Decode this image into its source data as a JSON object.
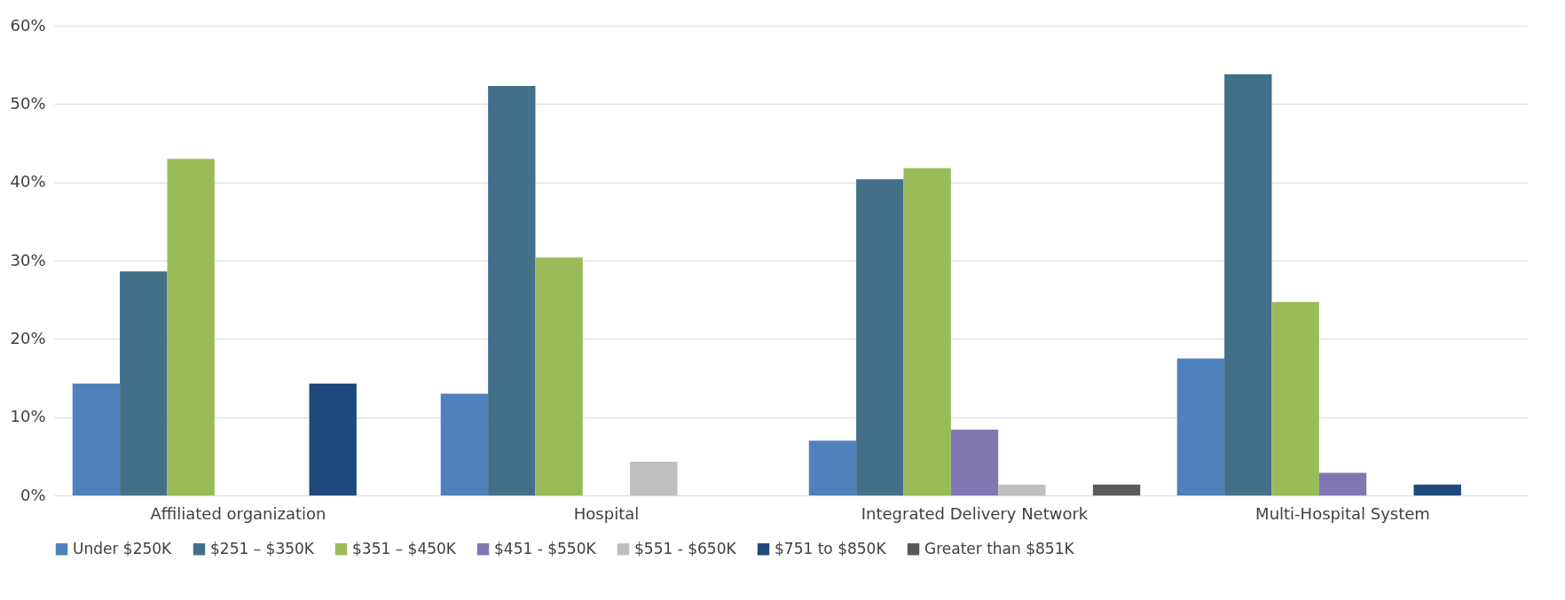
{
  "chart_data": {
    "type": "bar",
    "categories": [
      "Affiliated organization",
      "Hospital",
      "Integrated Delivery Network",
      "Multi-Hospital System"
    ],
    "series": [
      {
        "name": "Under $250K",
        "color": "#4f81bd",
        "values": [
          14.3,
          13.0,
          7.0,
          17.5
        ]
      },
      {
        "name": "$251 – $350K",
        "color": "#426f89",
        "values": [
          28.6,
          52.3,
          40.4,
          53.8
        ]
      },
      {
        "name": "$351 – $450K",
        "color": "#9bbb59",
        "values": [
          43.0,
          30.4,
          41.8,
          24.7
        ]
      },
      {
        "name": "$451 - $550K",
        "color": "#8077b2",
        "values": [
          0,
          0,
          8.4,
          2.9
        ]
      },
      {
        "name": "$551 - $650K",
        "color": "#bfbfbf",
        "values": [
          0,
          4.3,
          1.4,
          0
        ]
      },
      {
        "name": "$751 to $850K",
        "color": "#1f497d",
        "values": [
          14.3,
          0,
          0,
          1.4
        ]
      },
      {
        "name": "Greater than $851K",
        "color": "#595959",
        "values": [
          0,
          0,
          1.4,
          0
        ]
      }
    ],
    "ylim": [
      0,
      60
    ],
    "yticks": [
      {
        "value": 0,
        "label": "0%"
      },
      {
        "value": 10,
        "label": "10%"
      },
      {
        "value": 20,
        "label": "20%"
      },
      {
        "value": 30,
        "label": "30%"
      },
      {
        "value": 40,
        "label": "40%"
      },
      {
        "value": 50,
        "label": "50%"
      },
      {
        "value": 60,
        "label": "60%"
      }
    ],
    "grid": "y",
    "legend": "bottom"
  }
}
